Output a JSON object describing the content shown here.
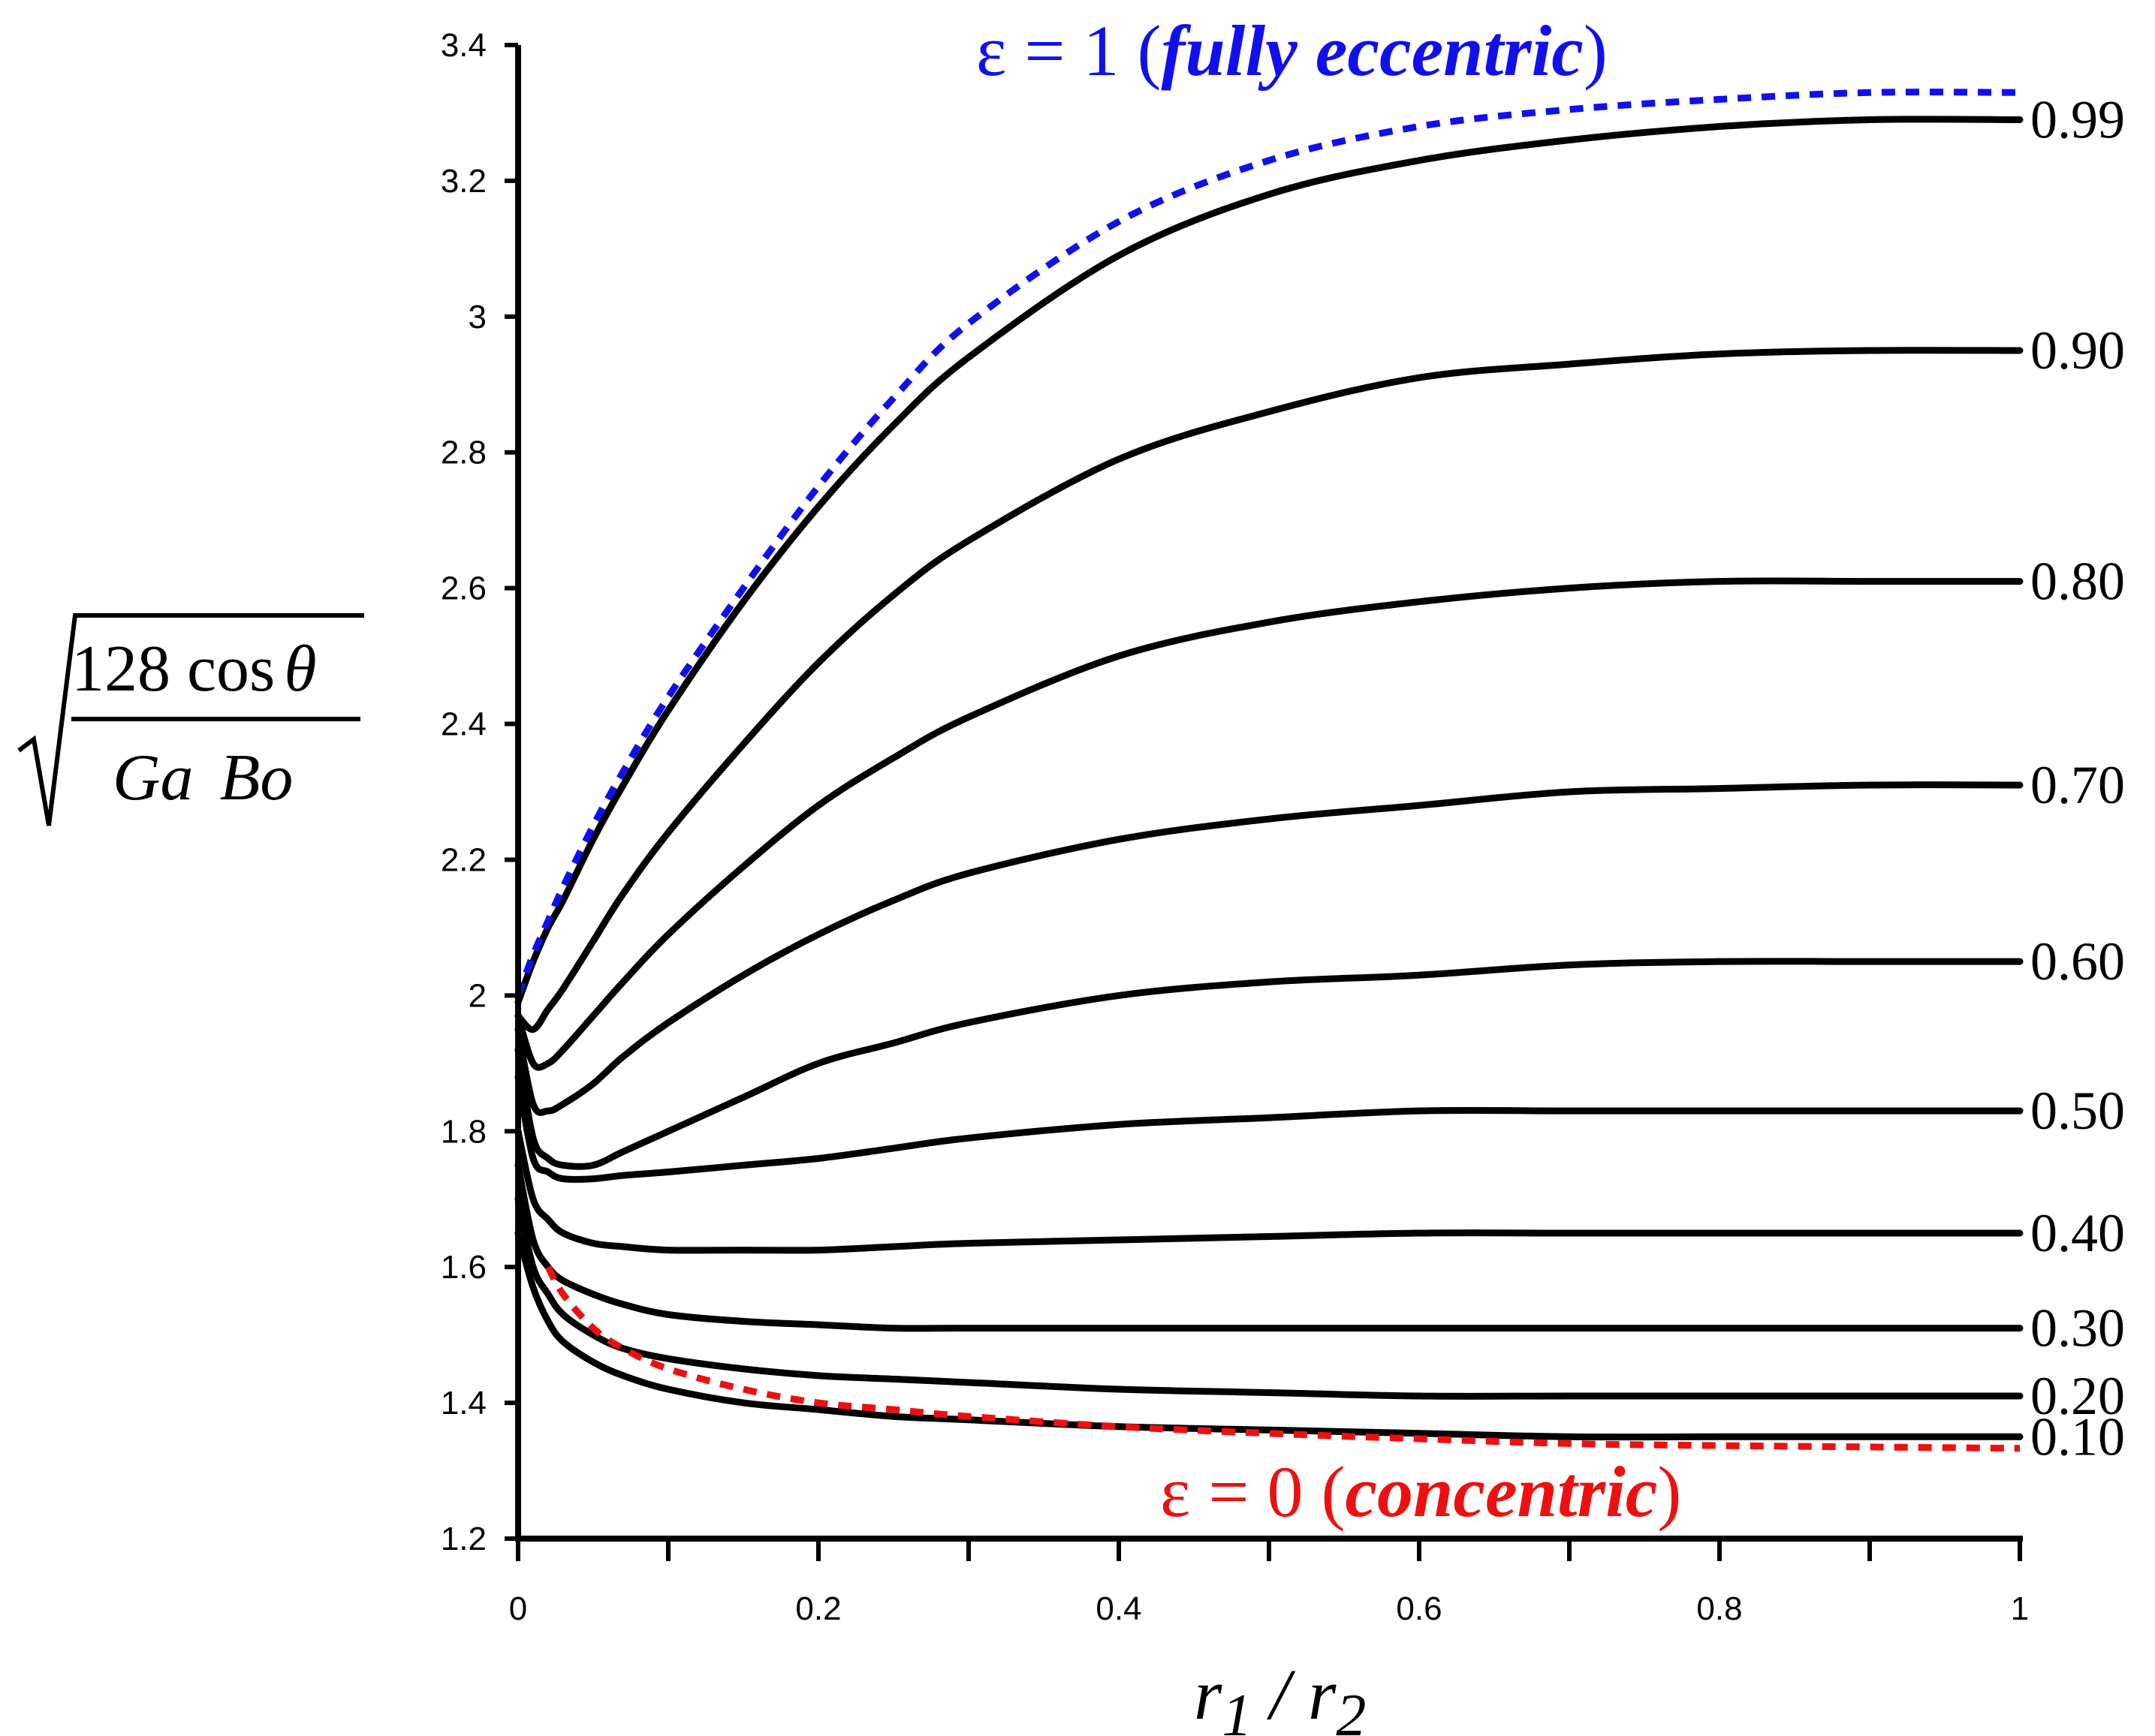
{
  "chart_data": {
    "type": "line",
    "xlabel": "r1 / r2",
    "xlabel_parts": {
      "a": "r",
      "a_sub": "1",
      "sep": " / ",
      "b": "r",
      "b_sub": "2"
    },
    "ylabel": {
      "numerator": "128 cos θ",
      "num_a": "128 cos",
      "num_theta": "θ",
      "den_a": "Ga",
      "den_b": "Bo"
    },
    "xlim": [
      0,
      1
    ],
    "ylim": [
      1.2,
      3.4
    ],
    "xticks": [
      0,
      0.2,
      0.4,
      0.6,
      0.8,
      1
    ],
    "xtick_labels": [
      "0",
      "0.2",
      "0.4",
      "0.6",
      "0.8",
      "1"
    ],
    "yticks": [
      1.2,
      1.4,
      1.6,
      1.8,
      2,
      2.2,
      2.4,
      2.6,
      2.8,
      3,
      3.2,
      3.4
    ],
    "ytick_labels": [
      "1.2",
      "1.4",
      "1.6",
      "1.8",
      "2",
      "2.2",
      "2.4",
      "2.6",
      "2.8",
      "3",
      "3.2",
      "3.4"
    ],
    "grid": false,
    "x": [
      0,
      0.01,
      0.02,
      0.03,
      0.05,
      0.07,
      0.1,
      0.15,
      0.2,
      0.25,
      0.3,
      0.4,
      0.5,
      0.6,
      0.7,
      0.8,
      0.9,
      1.0
    ],
    "series": [
      {
        "name": "0.99",
        "label": "0.99",
        "style": "solid",
        "color": "#000000",
        "values": [
          1.99,
          2.05,
          2.1,
          2.14,
          2.23,
          2.31,
          2.42,
          2.58,
          2.72,
          2.84,
          2.94,
          3.09,
          3.18,
          3.23,
          3.26,
          3.28,
          3.29,
          3.29
        ]
      },
      {
        "name": "0.90",
        "label": "0.90",
        "style": "solid",
        "color": "#000000",
        "values": [
          1.97,
          1.95,
          1.98,
          2.01,
          2.08,
          2.15,
          2.24,
          2.37,
          2.49,
          2.59,
          2.67,
          2.79,
          2.86,
          2.91,
          2.93,
          2.945,
          2.95,
          2.95
        ]
      },
      {
        "name": "0.80",
        "label": "0.80",
        "style": "solid",
        "color": "#000000",
        "values": [
          1.97,
          1.9,
          1.9,
          1.92,
          1.97,
          2.02,
          2.09,
          2.19,
          2.28,
          2.35,
          2.41,
          2.5,
          2.55,
          2.58,
          2.6,
          2.61,
          2.61,
          2.61
        ]
      },
      {
        "name": "0.70",
        "label": "0.70",
        "style": "solid",
        "color": "#000000",
        "values": [
          1.95,
          1.84,
          1.83,
          1.84,
          1.87,
          1.91,
          1.96,
          2.03,
          2.09,
          2.14,
          2.18,
          2.23,
          2.26,
          2.28,
          2.3,
          2.305,
          2.31,
          2.31
        ]
      },
      {
        "name": "0.60",
        "label": "0.60",
        "style": "solid",
        "color": "#000000",
        "values": [
          1.92,
          1.79,
          1.76,
          1.75,
          1.75,
          1.77,
          1.8,
          1.85,
          1.9,
          1.93,
          1.96,
          2.0,
          2.02,
          2.03,
          2.045,
          2.05,
          2.05,
          2.05
        ]
      },
      {
        "name": "0.50",
        "label": "0.50",
        "style": "solid",
        "color": "#000000",
        "values": [
          1.88,
          1.76,
          1.74,
          1.73,
          1.73,
          1.735,
          1.74,
          1.75,
          1.76,
          1.775,
          1.79,
          1.81,
          1.82,
          1.83,
          1.83,
          1.83,
          1.83,
          1.83
        ]
      },
      {
        "name": "0.40",
        "label": "0.40",
        "style": "solid",
        "color": "#000000",
        "values": [
          1.8,
          1.7,
          1.67,
          1.65,
          1.635,
          1.63,
          1.625,
          1.625,
          1.625,
          1.63,
          1.635,
          1.64,
          1.645,
          1.65,
          1.65,
          1.65,
          1.65,
          1.65
        ]
      },
      {
        "name": "0.30",
        "label": "0.30",
        "style": "solid",
        "color": "#000000",
        "values": [
          1.75,
          1.64,
          1.6,
          1.58,
          1.56,
          1.545,
          1.53,
          1.52,
          1.515,
          1.51,
          1.51,
          1.51,
          1.51,
          1.51,
          1.51,
          1.51,
          1.51,
          1.51
        ]
      },
      {
        "name": "0.20",
        "label": "0.20",
        "style": "solid",
        "color": "#000000",
        "values": [
          1.7,
          1.6,
          1.56,
          1.53,
          1.5,
          1.48,
          1.465,
          1.45,
          1.44,
          1.435,
          1.43,
          1.42,
          1.415,
          1.41,
          1.41,
          1.41,
          1.41,
          1.41
        ]
      },
      {
        "name": "0.10",
        "label": "0.10",
        "style": "solid",
        "color": "#000000",
        "values": [
          1.65,
          1.57,
          1.52,
          1.49,
          1.46,
          1.44,
          1.42,
          1.4,
          1.39,
          1.38,
          1.375,
          1.365,
          1.36,
          1.355,
          1.35,
          1.35,
          1.35,
          1.35
        ]
      },
      {
        "name": "ε = 1",
        "label": "",
        "style": "dashed",
        "color": "#1010ee",
        "values": [
          2.0,
          2.06,
          2.11,
          2.16,
          2.25,
          2.33,
          2.44,
          2.6,
          2.75,
          2.88,
          2.99,
          3.14,
          3.23,
          3.28,
          3.305,
          3.32,
          3.33,
          3.33
        ]
      },
      {
        "name": "ε = 0",
        "label": "",
        "style": "dashed",
        "color": "#ee1010",
        "x": [
          0.02,
          0.03,
          0.05,
          0.07,
          0.1,
          0.15,
          0.2,
          0.25,
          0.3,
          0.4,
          0.5,
          0.6,
          0.7,
          0.8,
          0.9,
          1.0
        ],
        "values": [
          1.6,
          1.56,
          1.51,
          1.48,
          1.45,
          1.42,
          1.4,
          1.39,
          1.38,
          1.365,
          1.355,
          1.347,
          1.34,
          1.337,
          1.335,
          1.333
        ]
      }
    ],
    "annotations": [
      {
        "key": "top",
        "color": "#1010ee",
        "prefix": "ε = 1  ",
        "open": "(",
        "emph": "fully eccentric",
        "close": ")"
      },
      {
        "key": "bottom",
        "color": "#ee1010",
        "prefix": "ε = 0  ",
        "open": "(",
        "emph": "concentric",
        "close": ")"
      }
    ]
  }
}
